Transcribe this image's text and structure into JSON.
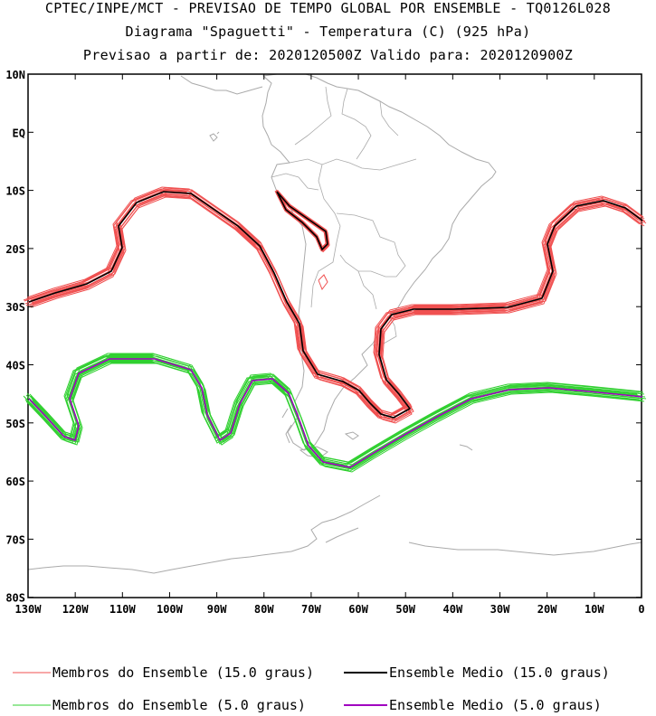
{
  "titles": {
    "line1": "CPTEC/INPE/MCT - PREVISAO DE TEMPO GLOBAL POR ENSEMBLE - TQ0126L028",
    "line2": "Diagrama \"Spaguetti\" - Temperatura (C) (925 hPa)",
    "line3": "Previsao a partir de: 2020120500Z  Valido para: 2020120900Z"
  },
  "lat_labels": [
    "10N",
    "EQ",
    "10S",
    "20S",
    "30S",
    "40S",
    "50S",
    "60S",
    "70S",
    "80S"
  ],
  "lon_labels": [
    "130W",
    "120W",
    "110W",
    "100W",
    "90W",
    "80W",
    "70W",
    "60W",
    "50W",
    "40W",
    "30W",
    "20W",
    "10W",
    "0"
  ],
  "legend": [
    {
      "label": "Membros do Ensemble (15.0 graus)",
      "color": "#f05050"
    },
    {
      "label": "Ensemble Medio (15.0 graus)",
      "color": "#000000"
    },
    {
      "label": "Membros do Ensemble (5.0 graus)",
      "color": "#30d030"
    },
    {
      "label": "Ensemble Medio (5.0 graus)",
      "color": "#a000c0"
    }
  ],
  "colors": {
    "members_15": "#f05050",
    "mean_15": "#000000",
    "members_5": "#30d030",
    "mean_5": "#a000c0",
    "coast": "#aaaaaa"
  }
}
